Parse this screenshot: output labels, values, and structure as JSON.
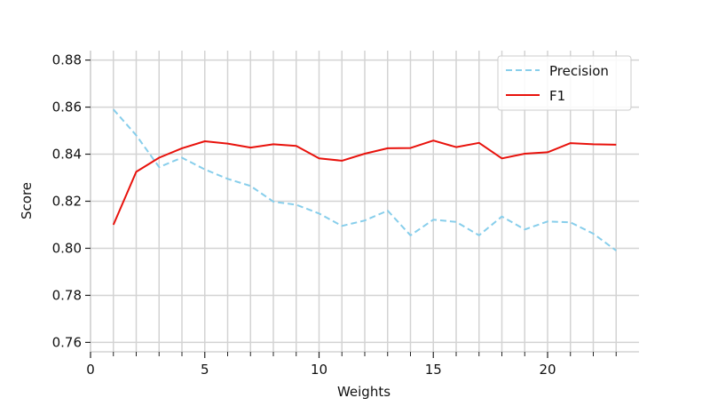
{
  "chart_data": {
    "type": "line",
    "title": "",
    "xlabel": "Weights",
    "ylabel": "Score",
    "xlim": [
      0,
      24
    ],
    "ylim": [
      0.756,
      0.884
    ],
    "xticks": [
      0,
      5,
      10,
      15,
      20
    ],
    "xtick_labels": [
      "0",
      "5",
      "10",
      "15",
      "20"
    ],
    "xminor_ticks": [
      1,
      2,
      3,
      4,
      6,
      7,
      8,
      9,
      11,
      12,
      13,
      14,
      16,
      17,
      18,
      19,
      21,
      22,
      23
    ],
    "yticks": [
      0.76,
      0.78,
      0.8,
      0.82,
      0.84,
      0.86,
      0.88
    ],
    "ytick_labels": [
      "0.76",
      "0.78",
      "0.80",
      "0.82",
      "0.84",
      "0.86",
      "0.88"
    ],
    "grid": true,
    "legend_position": "top-right",
    "x": [
      1,
      2,
      3,
      4,
      5,
      6,
      7,
      8,
      9,
      10,
      11,
      12,
      13,
      14,
      15,
      16,
      17,
      18,
      19,
      20,
      21,
      22,
      23
    ],
    "series": [
      {
        "name": "Precision",
        "color": "#87ceeb",
        "style": "dashed",
        "values": [
          0.859,
          0.848,
          0.8345,
          0.8385,
          0.8335,
          0.8295,
          0.8265,
          0.8198,
          0.8185,
          0.8148,
          0.8095,
          0.8118,
          0.816,
          0.8055,
          0.8122,
          0.8112,
          0.8055,
          0.8135,
          0.808,
          0.8114,
          0.811,
          0.8062,
          0.799
        ]
      },
      {
        "name": "F1",
        "color": "#e8120c",
        "style": "solid",
        "values": [
          0.81,
          0.8325,
          0.8385,
          0.8425,
          0.8455,
          0.8445,
          0.8428,
          0.8442,
          0.8435,
          0.8382,
          0.8372,
          0.8402,
          0.8425,
          0.8426,
          0.8458,
          0.843,
          0.8448,
          0.8382,
          0.8402,
          0.8408,
          0.8447,
          0.8442,
          0.844
        ]
      }
    ]
  }
}
